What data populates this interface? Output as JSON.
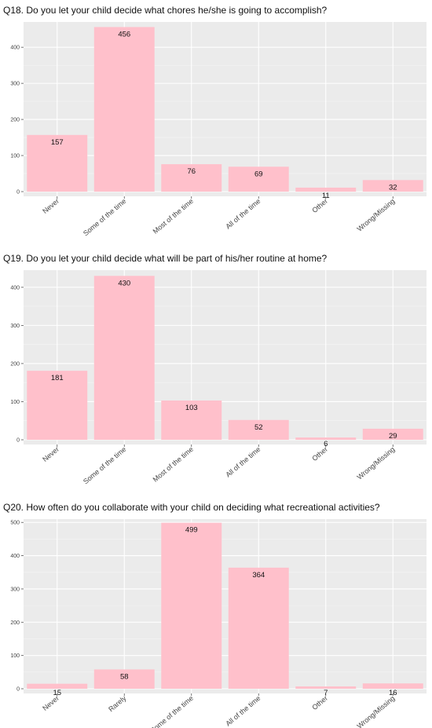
{
  "chart_data": [
    {
      "type": "bar",
      "title": "Q18. Do you let your child decide what chores he/she is going to accomplish?",
      "categories": [
        "Never",
        "Some of the time",
        "Most of the time",
        "All of the time",
        "Other",
        "Wrong/Missing"
      ],
      "values": [
        157,
        456,
        76,
        69,
        11,
        32
      ],
      "yticks": [
        0,
        100,
        200,
        300,
        400
      ],
      "ylim": [
        0,
        470
      ],
      "bar_color": "#ffc0cb",
      "panel_bg": "#ebebeb",
      "grid": true
    },
    {
      "type": "bar",
      "title": "Q19. Do you let your child decide what will be part of his/her routine at home?",
      "categories": [
        "Never",
        "Some of the time",
        "Most of the time",
        "All of the time",
        "Other",
        "Wrong/Missing"
      ],
      "values": [
        181,
        430,
        103,
        52,
        6,
        29
      ],
      "yticks": [
        0,
        100,
        200,
        300,
        400
      ],
      "ylim": [
        0,
        445
      ],
      "bar_color": "#ffc0cb",
      "panel_bg": "#ebebeb",
      "grid": true
    },
    {
      "type": "bar",
      "title": "Q20. How often do you collaborate with your child on deciding what recreational activities?",
      "categories": [
        "Never",
        "Rarely",
        "Some of the time",
        "All of the time",
        "Other",
        "Wrong/Missing"
      ],
      "values": [
        15,
        58,
        499,
        364,
        7,
        16
      ],
      "yticks": [
        0,
        100,
        200,
        300,
        400,
        500
      ],
      "ylim": [
        0,
        510
      ],
      "bar_color": "#ffc0cb",
      "panel_bg": "#ebebeb",
      "grid": true
    }
  ]
}
